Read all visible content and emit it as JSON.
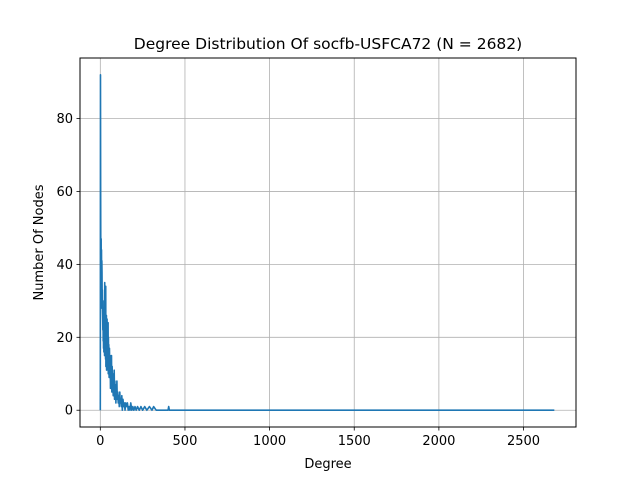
{
  "chart_data": {
    "type": "line",
    "title": "Degree Distribution Of socfb-USFCA72 (N = 2682)",
    "xlabel": "Degree",
    "ylabel": "Number Of Nodes",
    "xlim": [
      -120,
      2810
    ],
    "ylim": [
      -4.6,
      96.6
    ],
    "xticks": [
      0,
      500,
      1000,
      1500,
      2000,
      2500
    ],
    "yticks": [
      0,
      20,
      40,
      60,
      80
    ],
    "grid": true,
    "series": [
      {
        "color": "#1f77b4",
        "x": [
          0,
          1,
          2,
          3,
          4,
          5,
          6,
          7,
          8,
          9,
          10,
          11,
          12,
          13,
          14,
          15,
          16,
          17,
          18,
          19,
          20,
          21,
          22,
          23,
          24,
          25,
          26,
          27,
          28,
          29,
          30,
          31,
          32,
          33,
          34,
          35,
          36,
          37,
          38,
          39,
          40,
          41,
          42,
          43,
          44,
          45,
          46,
          47,
          48,
          49,
          50,
          52,
          54,
          56,
          58,
          60,
          62,
          64,
          66,
          68,
          70,
          72,
          74,
          76,
          78,
          80,
          82,
          84,
          86,
          88,
          90,
          92,
          94,
          96,
          98,
          100,
          103,
          106,
          109,
          112,
          115,
          118,
          121,
          124,
          127,
          130,
          134,
          138,
          142,
          146,
          150,
          155,
          160,
          165,
          170,
          175,
          180,
          186,
          192,
          198,
          205,
          212,
          220,
          230,
          240,
          250,
          262,
          275,
          290,
          305,
          315,
          330,
          350,
          380,
          400,
          404,
          408,
          450,
          500,
          700,
          1000,
          1500,
          2000,
          2500,
          2682
        ],
        "y": [
          0,
          92,
          60,
          40,
          35,
          47,
          28,
          44,
          32,
          41,
          38,
          30,
          33,
          27,
          25,
          22,
          30,
          19,
          24,
          17,
          28,
          16,
          21,
          18,
          24,
          15,
          35,
          18,
          26,
          16,
          33,
          14,
          34,
          12,
          22,
          15,
          26,
          11,
          20,
          13,
          25,
          12,
          17,
          14,
          22,
          11,
          24,
          10,
          20,
          12,
          18,
          9,
          17,
          11,
          15,
          6,
          14,
          8,
          15,
          5,
          12,
          7,
          10,
          4,
          9,
          6,
          11,
          3,
          8,
          5,
          7,
          2,
          6,
          4,
          8,
          3,
          5,
          2,
          4,
          1,
          5,
          2,
          3,
          1,
          4,
          0,
          3,
          1,
          2,
          0,
          2,
          1,
          2,
          0,
          1,
          0,
          2,
          0,
          1,
          0,
          1,
          0,
          1,
          0,
          1,
          0,
          1,
          0,
          1,
          0,
          1,
          0,
          0,
          0,
          0,
          1,
          0,
          0,
          0,
          0,
          0,
          0,
          0,
          0,
          0
        ]
      }
    ]
  }
}
